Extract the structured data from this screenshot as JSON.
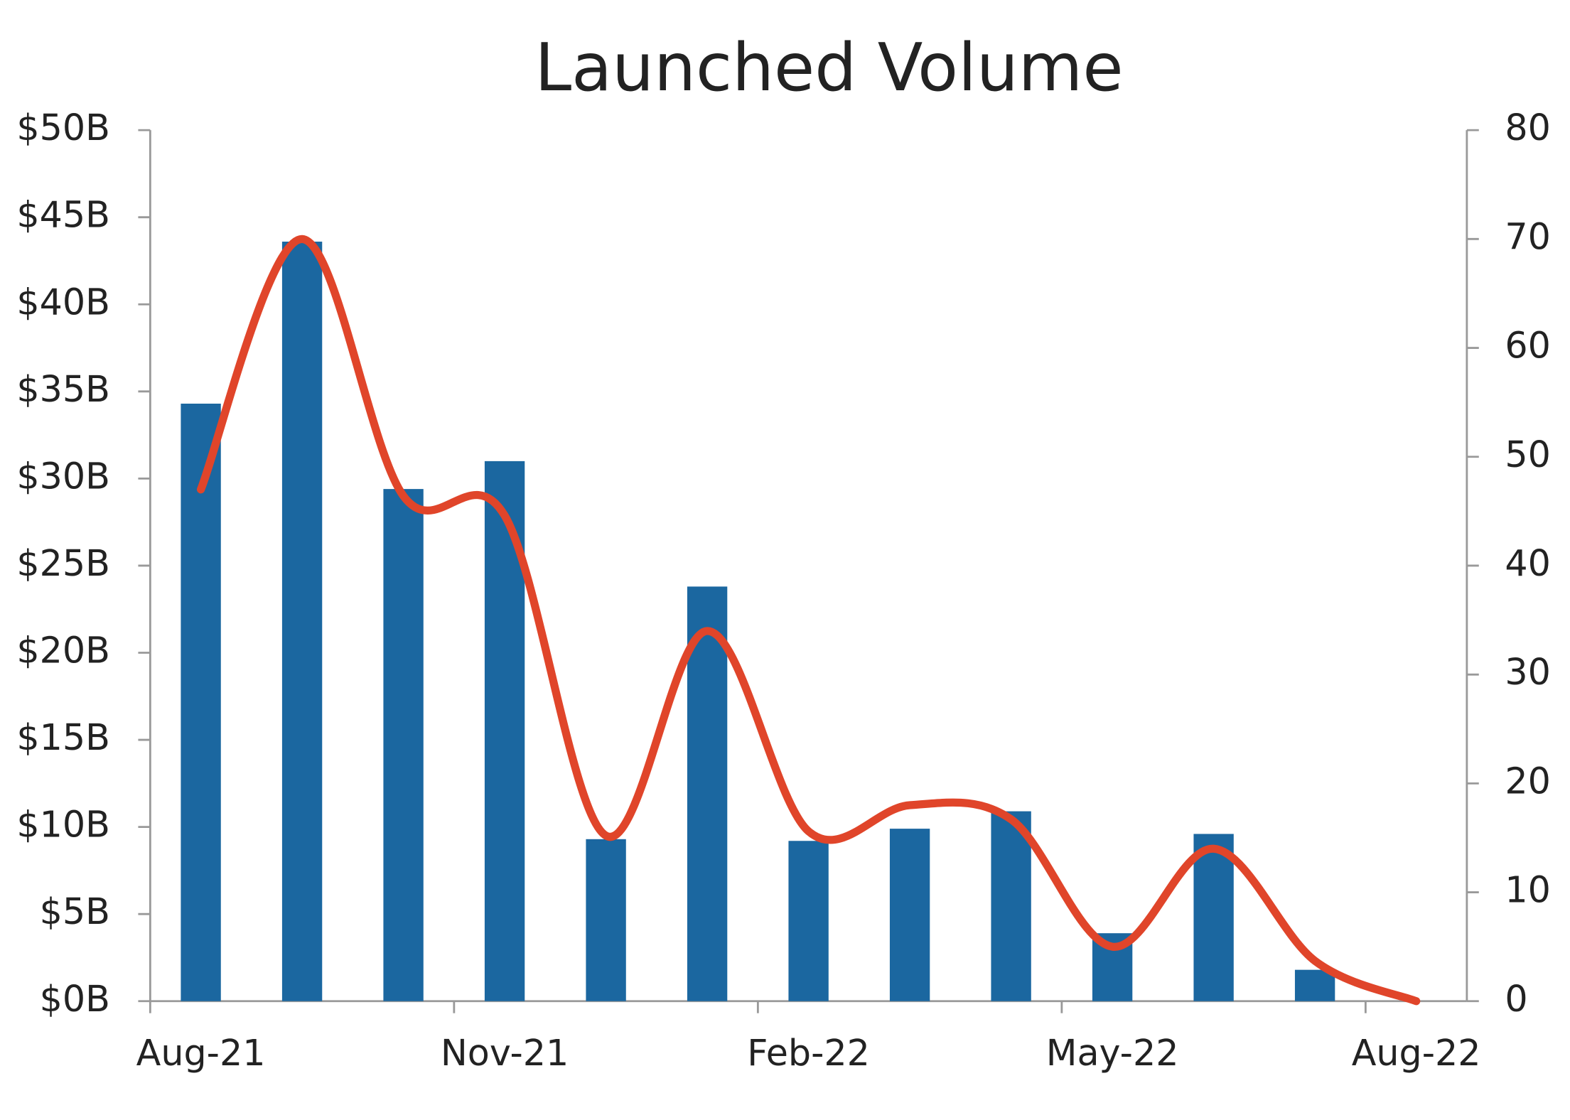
{
  "chart_data": {
    "type": "bar",
    "title": "Launched Volume",
    "categories": [
      "Aug-21",
      null,
      null,
      "Nov-21",
      null,
      null,
      "Feb-22",
      null,
      null,
      "May-22",
      null,
      null,
      "Aug-22"
    ],
    "series": [
      {
        "type": "bar",
        "color": "#1b67a0",
        "values": [
          34.3,
          43.6,
          29.4,
          31.0,
          9.3,
          23.8,
          9.2,
          9.9,
          10.9,
          3.9,
          9.6,
          1.8,
          0
        ]
      },
      {
        "type": "line",
        "axis": "y2",
        "color": "#e0452a",
        "values": [
          47,
          70,
          46.4,
          44.6,
          15.2,
          34,
          15.6,
          18,
          16.7,
          5,
          14,
          3.7,
          0
        ]
      }
    ],
    "ylim": [
      0,
      50
    ],
    "yticks": [
      {
        "value": 0,
        "label": "$0B"
      },
      {
        "value": 5,
        "label": "$5B"
      },
      {
        "value": 10,
        "label": "$10B"
      },
      {
        "value": 15,
        "label": "$15B"
      },
      {
        "value": 20,
        "label": "$20B"
      },
      {
        "value": 25,
        "label": "$25B"
      },
      {
        "value": 30,
        "label": "$30B"
      },
      {
        "value": 35,
        "label": "$35B"
      },
      {
        "value": 40,
        "label": "$40B"
      },
      {
        "value": 45,
        "label": "$45B"
      },
      {
        "value": 50,
        "label": "$50B"
      }
    ],
    "y2lim": [
      0,
      80
    ],
    "y2ticks": [
      0,
      10,
      20,
      30,
      40,
      50,
      60,
      70,
      80
    ],
    "grid": false
  }
}
